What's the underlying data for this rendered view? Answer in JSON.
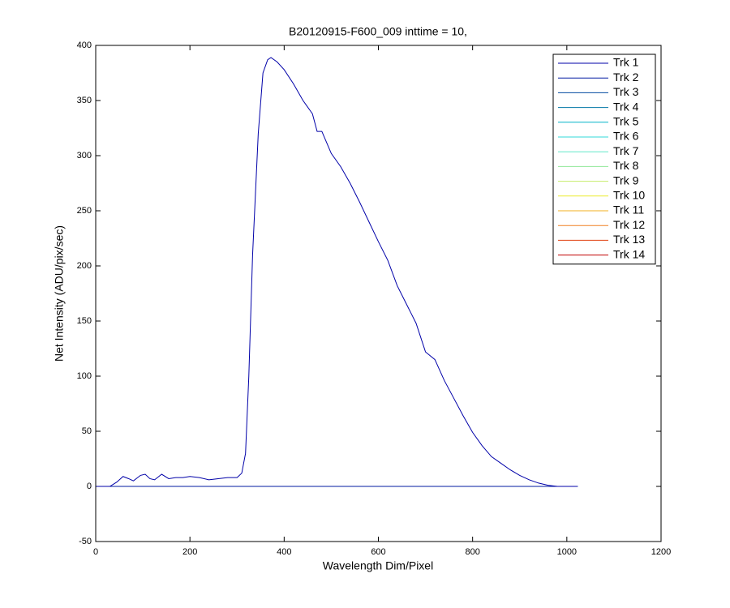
{
  "chart_data": {
    "type": "line",
    "title": "B20120915-F600_009 inttime = 10,",
    "x_label": "Wavelength Dim/Pixel",
    "y_label": "Net Intensity (ADU/pix/sec)",
    "xlim": [
      0,
      1200
    ],
    "xticks": [
      0,
      200,
      400,
      600,
      800,
      1000,
      1200
    ],
    "ylim": [
      -50,
      400
    ],
    "yticks": [
      -50,
      0,
      50,
      100,
      150,
      200,
      250,
      300,
      350,
      400
    ],
    "grid": false,
    "legend": "upper right",
    "series": [
      {
        "name": "Trk 1",
        "color": "#0000a8",
        "x": [
          0,
          30,
          45,
          58,
          70,
          80,
          95,
          105,
          115,
          125,
          140,
          155,
          170,
          185,
          200,
          220,
          240,
          260,
          280,
          300,
          310,
          318,
          325,
          333,
          345,
          355,
          365,
          372,
          385,
          400,
          420,
          440,
          460,
          470,
          480,
          490,
          500,
          520,
          540,
          560,
          580,
          600,
          620,
          640,
          660,
          680,
          700,
          720,
          740,
          760,
          780,
          800,
          820,
          840,
          860,
          880,
          900,
          920,
          940,
          960,
          980,
          1000,
          1023
        ],
        "values": [
          0,
          0,
          4,
          9,
          7,
          5,
          10,
          11,
          7,
          6,
          11,
          7,
          8,
          8,
          9,
          8,
          6,
          7,
          8,
          8,
          12,
          30,
          100,
          210,
          320,
          375,
          387,
          389,
          385,
          378,
          365,
          350,
          338,
          322,
          322,
          312,
          302,
          290,
          275,
          258,
          240,
          222,
          205,
          182,
          165,
          148,
          122,
          115,
          96,
          80,
          64,
          49,
          37,
          27,
          21,
          15,
          10,
          6,
          3,
          1,
          0,
          0,
          0
        ]
      },
      {
        "name": "Trk 2",
        "color": "#0018a0",
        "x": [
          0,
          1023
        ],
        "values": [
          0,
          0
        ]
      },
      {
        "name": "Trk 3",
        "color": "#00489f",
        "x": [
          0,
          1023
        ],
        "values": [
          0,
          0
        ]
      },
      {
        "name": "Trk 4",
        "color": "#0076a6",
        "x": [
          0,
          1023
        ],
        "values": [
          0,
          0
        ]
      },
      {
        "name": "Trk 5",
        "color": "#00b4c8",
        "x": [
          0,
          1023
        ],
        "values": [
          0,
          0
        ]
      },
      {
        "name": "Trk 6",
        "color": "#30d8d8",
        "x": [
          0,
          1023
        ],
        "values": [
          0,
          0
        ]
      },
      {
        "name": "Trk 7",
        "color": "#60e8c8",
        "x": [
          0,
          1023
        ],
        "values": [
          0,
          0
        ]
      },
      {
        "name": "Trk 8",
        "color": "#90e898",
        "x": [
          0,
          1023
        ],
        "values": [
          0,
          0
        ]
      },
      {
        "name": "Trk 9",
        "color": "#c4ec68",
        "x": [
          0,
          1023
        ],
        "values": [
          0,
          0
        ]
      },
      {
        "name": "Trk 10",
        "color": "#ecec30",
        "x": [
          0,
          1023
        ],
        "values": [
          0,
          0
        ]
      },
      {
        "name": "Trk 11",
        "color": "#f0b020",
        "x": [
          0,
          1023
        ],
        "values": [
          0,
          0
        ]
      },
      {
        "name": "Trk 12",
        "color": "#f08020",
        "x": [
          0,
          1023
        ],
        "values": [
          0,
          0
        ]
      },
      {
        "name": "Trk 13",
        "color": "#e04010",
        "x": [
          0,
          1023
        ],
        "values": [
          0,
          0
        ]
      },
      {
        "name": "Trk 14",
        "color": "#c00000",
        "x": [
          0,
          1023
        ],
        "values": [
          0,
          0
        ]
      }
    ]
  }
}
